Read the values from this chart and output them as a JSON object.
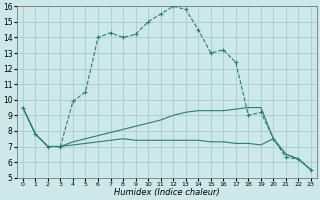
{
  "xlabel": "Humidex (Indice chaleur)",
  "bg_color": "#cce8e8",
  "grid_color": "#aacccc",
  "line_color": "#2d7d6e",
  "xlim": [
    -0.5,
    23.5
  ],
  "ylim": [
    5,
    16
  ],
  "xticks": [
    0,
    1,
    2,
    3,
    4,
    5,
    6,
    7,
    8,
    9,
    10,
    11,
    12,
    13,
    14,
    15,
    16,
    17,
    18,
    19,
    20,
    21,
    22,
    23
  ],
  "yticks": [
    5,
    6,
    7,
    8,
    9,
    10,
    11,
    12,
    13,
    14,
    15,
    16
  ],
  "series1_x": [
    0,
    1,
    2,
    3,
    4,
    5,
    6,
    7,
    8,
    9,
    10,
    11,
    12,
    13,
    14,
    15,
    16,
    17,
    18,
    19,
    20,
    21,
    22,
    23
  ],
  "series1_y": [
    9.5,
    7.8,
    7.0,
    7.0,
    9.9,
    10.5,
    14.0,
    14.3,
    14.0,
    14.2,
    15.0,
    15.5,
    16.0,
    15.8,
    14.5,
    13.0,
    13.2,
    12.4,
    9.0,
    9.2,
    7.5,
    6.3,
    6.2,
    5.5
  ],
  "series2_x": [
    0,
    1,
    2,
    3,
    4,
    5,
    6,
    7,
    8,
    9,
    10,
    11,
    12,
    13,
    14,
    15,
    16,
    17,
    18,
    19,
    20,
    21,
    22,
    23
  ],
  "series2_y": [
    9.5,
    7.8,
    7.0,
    7.0,
    7.3,
    7.5,
    7.7,
    7.9,
    8.1,
    8.3,
    8.5,
    8.7,
    9.0,
    9.2,
    9.3,
    9.3,
    9.3,
    9.4,
    9.5,
    9.5,
    7.5,
    6.5,
    6.2,
    5.5
  ],
  "series3_x": [
    0,
    1,
    2,
    3,
    4,
    5,
    6,
    7,
    8,
    9,
    10,
    11,
    12,
    13,
    14,
    15,
    16,
    17,
    18,
    19,
    20,
    21,
    22,
    23
  ],
  "series3_y": [
    9.5,
    7.8,
    7.0,
    7.0,
    7.1,
    7.2,
    7.3,
    7.4,
    7.5,
    7.4,
    7.4,
    7.4,
    7.4,
    7.4,
    7.4,
    7.3,
    7.3,
    7.2,
    7.2,
    7.1,
    7.5,
    6.5,
    6.2,
    5.5
  ]
}
